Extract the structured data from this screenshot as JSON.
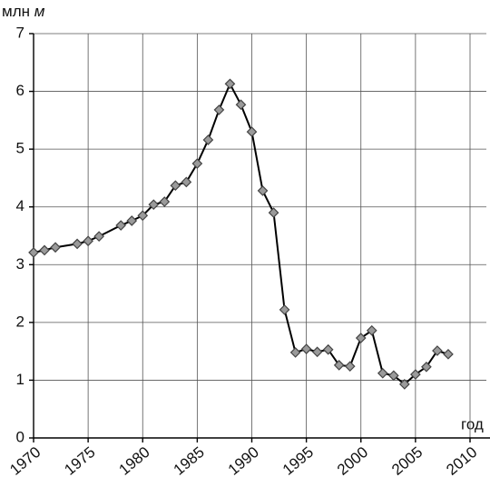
{
  "chart_data": {
    "type": "line",
    "ylabel": "млн",
    "ylabel_unit": "м",
    "xlabel": "год",
    "x": [
      1970,
      1971,
      1972,
      1974,
      1975,
      1976,
      1978,
      1979,
      1980,
      1981,
      1982,
      1983,
      1984,
      1985,
      1986,
      1987,
      1988,
      1989,
      1990,
      1991,
      1992,
      1993,
      1994,
      1995,
      1996,
      1997,
      1998,
      1999,
      2000,
      2001,
      2002,
      2003,
      2004,
      2005,
      2006,
      2007,
      2008
    ],
    "values": [
      3.21,
      3.25,
      3.3,
      3.36,
      3.41,
      3.49,
      3.68,
      3.76,
      3.85,
      4.04,
      4.09,
      4.37,
      4.43,
      4.75,
      5.16,
      5.68,
      6.13,
      5.77,
      5.3,
      4.28,
      3.9,
      2.22,
      1.48,
      1.54,
      1.49,
      1.53,
      1.26,
      1.24,
      1.73,
      1.86,
      1.12,
      1.08,
      0.93,
      1.1,
      1.23,
      1.51,
      1.45
    ],
    "color": "#000000",
    "marker_color": "#9a9a9a",
    "xlim": [
      1970,
      2010
    ],
    "xticks": [
      1970,
      1975,
      1980,
      1985,
      1990,
      1995,
      2000,
      2005,
      2010
    ],
    "ylim": [
      0,
      7
    ],
    "yticks": [
      0,
      1,
      2,
      3,
      4,
      5,
      6,
      7
    ],
    "grid": true
  }
}
